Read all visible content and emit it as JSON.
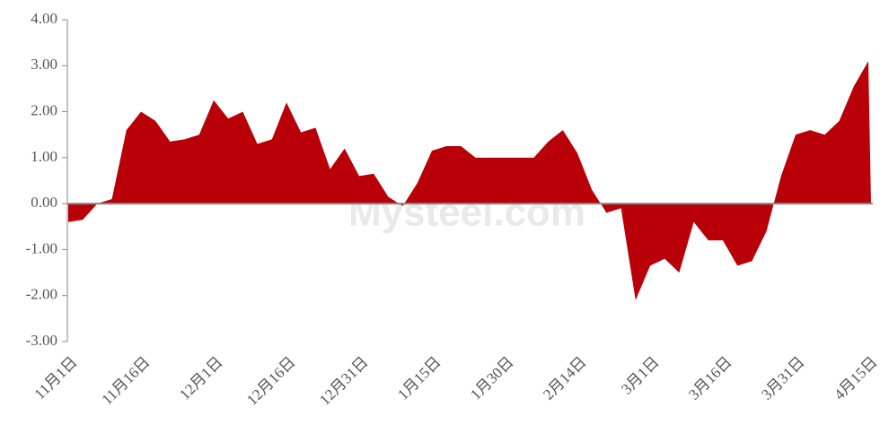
{
  "chart_data": {
    "type": "area",
    "watermark": "Mysteel.com",
    "categories": [
      "11月1日",
      null,
      null,
      null,
      null,
      "11月16日",
      null,
      null,
      null,
      null,
      "12月1日",
      null,
      null,
      null,
      null,
      "12月16日",
      null,
      null,
      null,
      null,
      "12月31日",
      null,
      null,
      null,
      null,
      "1月15日",
      null,
      null,
      null,
      null,
      "1月30日",
      null,
      null,
      null,
      null,
      "2月14日",
      null,
      null,
      null,
      null,
      "3月1日",
      null,
      null,
      null,
      null,
      "3月16日",
      null,
      null,
      null,
      null,
      "3月31日",
      null,
      null,
      null,
      null,
      "4月15日"
    ],
    "values": [
      -0.4,
      -0.35,
      0.0,
      0.1,
      1.6,
      2.0,
      1.8,
      1.35,
      1.4,
      1.5,
      2.25,
      1.85,
      2.0,
      1.3,
      1.4,
      2.2,
      1.55,
      1.65,
      0.75,
      1.2,
      0.6,
      0.65,
      0.15,
      -0.05,
      0.45,
      1.15,
      1.25,
      1.25,
      1.0,
      1.0,
      1.0,
      1.0,
      1.0,
      1.35,
      1.6,
      1.1,
      0.3,
      -0.2,
      -0.1,
      -2.1,
      -1.35,
      -1.2,
      -1.5,
      -0.4,
      -0.8,
      -0.8,
      -1.35,
      -1.25,
      -0.6,
      0.6,
      1.5,
      1.6,
      1.5,
      1.8,
      2.55,
      3.1
    ],
    "color": "#b90008",
    "ylim": [
      -3,
      4
    ],
    "yticks": [
      {
        "value": -3,
        "label": "-3.00"
      },
      {
        "value": -2,
        "label": "-2.00"
      },
      {
        "value": -1,
        "label": "-1.00"
      },
      {
        "value": 0,
        "label": "0.00"
      },
      {
        "value": 1,
        "label": "1.00"
      },
      {
        "value": 2,
        "label": "2.00"
      },
      {
        "value": 3,
        "label": "3.00"
      },
      {
        "value": 4,
        "label": "4.00"
      }
    ]
  }
}
